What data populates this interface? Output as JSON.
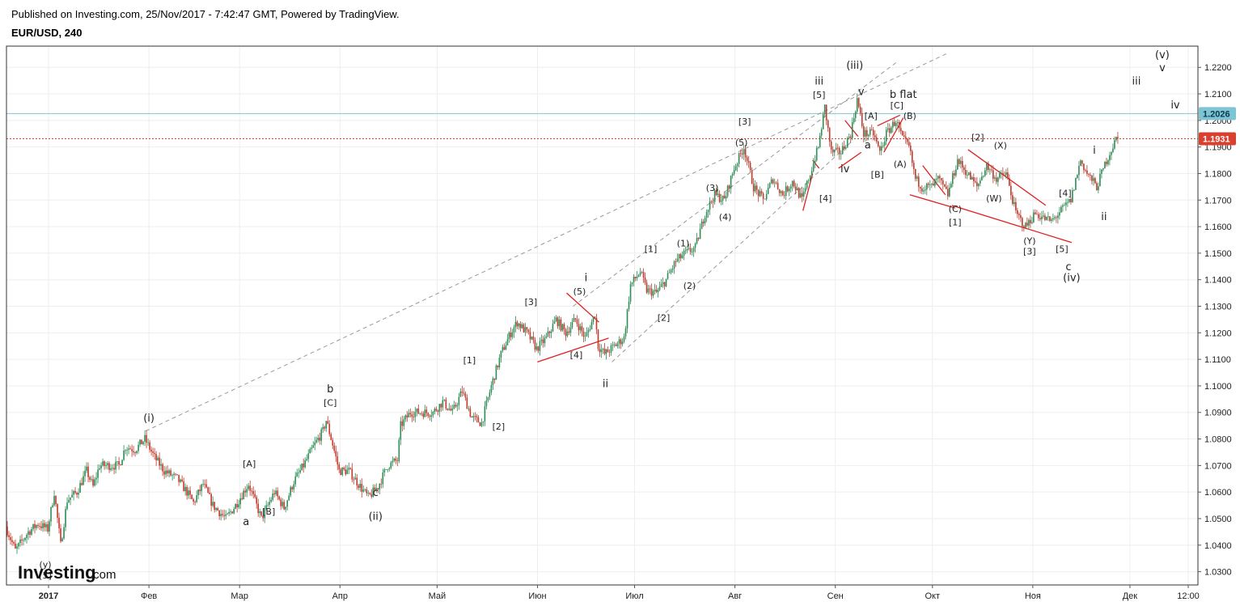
{
  "header": {
    "published": "Published on Investing.com, 25/Nov/2017 - 7:42:47 GMT, Powered by TradingView.",
    "symbol": "EUR/USD, 240"
  },
  "logo": {
    "brand": "Investing",
    "suffix": ".com"
  },
  "chart_data": {
    "type": "candlestick",
    "title": "EUR/USD, 240",
    "xlabel": "",
    "ylabel": "",
    "ylim": [
      1.025,
      1.228
    ],
    "y_ticks": [
      "1.2200",
      "1.2100",
      "1.2000",
      "1.1900",
      "1.1800",
      "1.1700",
      "1.1600",
      "1.1500",
      "1.1400",
      "1.1300",
      "1.1200",
      "1.1100",
      "1.1000",
      "1.0900",
      "1.0800",
      "1.0700",
      "1.0600",
      "1.0500",
      "1.0400",
      "1.0300"
    ],
    "x_ticks": [
      {
        "label": "2017",
        "day": 0
      },
      {
        "label": "Фев",
        "day": 31
      },
      {
        "label": "Мар",
        "day": 59
      },
      {
        "label": "Апр",
        "day": 90
      },
      {
        "label": "Май",
        "day": 120
      },
      {
        "label": "Июн",
        "day": 151
      },
      {
        "label": "Июл",
        "day": 181
      },
      {
        "label": "Авг",
        "day": 212
      },
      {
        "label": "Сен",
        "day": 243
      },
      {
        "label": "Окт",
        "day": 273
      },
      {
        "label": "Ноя",
        "day": 304
      },
      {
        "label": "Дек",
        "day": 334
      },
      {
        "label": "12:00",
        "day": 352
      }
    ],
    "xlim_days": [
      -13,
      355
    ],
    "horizontal_lines": [
      {
        "value": 1.2026,
        "label": "1.2026",
        "color": "#7fc4d4",
        "style": "solid"
      },
      {
        "value": 1.1931,
        "label": "1.1931",
        "color": "#d9412e",
        "style": "dotted"
      }
    ],
    "price_path": [
      {
        "day": -13,
        "price": 1.047
      },
      {
        "day": -10,
        "price": 1.038
      },
      {
        "day": -6,
        "price": 1.045
      },
      {
        "day": -3,
        "price": 1.048
      },
      {
        "day": 0,
        "price": 1.046
      },
      {
        "day": 2,
        "price": 1.06
      },
      {
        "day": 4,
        "price": 1.04
      },
      {
        "day": 6,
        "price": 1.057
      },
      {
        "day": 9,
        "price": 1.06
      },
      {
        "day": 12,
        "price": 1.068
      },
      {
        "day": 14,
        "price": 1.062
      },
      {
        "day": 16,
        "price": 1.07
      },
      {
        "day": 19,
        "price": 1.07
      },
      {
        "day": 22,
        "price": 1.07
      },
      {
        "day": 24,
        "price": 1.077
      },
      {
        "day": 27,
        "price": 1.076
      },
      {
        "day": 30,
        "price": 1.08
      },
      {
        "day": 33,
        "price": 1.073
      },
      {
        "day": 36,
        "price": 1.068
      },
      {
        "day": 40,
        "price": 1.065
      },
      {
        "day": 43,
        "price": 1.06
      },
      {
        "day": 45,
        "price": 1.056
      },
      {
        "day": 48,
        "price": 1.063
      },
      {
        "day": 51,
        "price": 1.055
      },
      {
        "day": 55,
        "price": 1.05
      },
      {
        "day": 58,
        "price": 1.055
      },
      {
        "day": 62,
        "price": 1.063
      },
      {
        "day": 66,
        "price": 1.05
      },
      {
        "day": 70,
        "price": 1.06
      },
      {
        "day": 73,
        "price": 1.054
      },
      {
        "day": 76,
        "price": 1.064
      },
      {
        "day": 79,
        "price": 1.07
      },
      {
        "day": 82,
        "price": 1.077
      },
      {
        "day": 85,
        "price": 1.083
      },
      {
        "day": 86,
        "price": 1.087
      },
      {
        "day": 88,
        "price": 1.078
      },
      {
        "day": 90,
        "price": 1.068
      },
      {
        "day": 93,
        "price": 1.068
      },
      {
        "day": 96,
        "price": 1.063
      },
      {
        "day": 99,
        "price": 1.058
      },
      {
        "day": 102,
        "price": 1.062
      },
      {
        "day": 105,
        "price": 1.07
      },
      {
        "day": 108,
        "price": 1.072
      },
      {
        "day": 109,
        "price": 1.085
      },
      {
        "day": 112,
        "price": 1.09
      },
      {
        "day": 116,
        "price": 1.09
      },
      {
        "day": 119,
        "price": 1.09
      },
      {
        "day": 122,
        "price": 1.094
      },
      {
        "day": 125,
        "price": 1.09
      },
      {
        "day": 128,
        "price": 1.098
      },
      {
        "day": 131,
        "price": 1.088
      },
      {
        "day": 134,
        "price": 1.086
      },
      {
        "day": 137,
        "price": 1.1
      },
      {
        "day": 140,
        "price": 1.112
      },
      {
        "day": 143,
        "price": 1.12
      },
      {
        "day": 145,
        "price": 1.124
      },
      {
        "day": 148,
        "price": 1.12
      },
      {
        "day": 151,
        "price": 1.114
      },
      {
        "day": 154,
        "price": 1.118
      },
      {
        "day": 157,
        "price": 1.125
      },
      {
        "day": 160,
        "price": 1.12
      },
      {
        "day": 163,
        "price": 1.125
      },
      {
        "day": 166,
        "price": 1.118
      },
      {
        "day": 169,
        "price": 1.127
      },
      {
        "day": 170,
        "price": 1.115
      },
      {
        "day": 172,
        "price": 1.112
      },
      {
        "day": 175,
        "price": 1.115
      },
      {
        "day": 178,
        "price": 1.118
      },
      {
        "day": 180,
        "price": 1.138
      },
      {
        "day": 183,
        "price": 1.143
      },
      {
        "day": 185,
        "price": 1.136
      },
      {
        "day": 188,
        "price": 1.135
      },
      {
        "day": 191,
        "price": 1.14
      },
      {
        "day": 194,
        "price": 1.147
      },
      {
        "day": 197,
        "price": 1.15
      },
      {
        "day": 200,
        "price": 1.152
      },
      {
        "day": 203,
        "price": 1.165
      },
      {
        "day": 206,
        "price": 1.172
      },
      {
        "day": 209,
        "price": 1.17
      },
      {
        "day": 212,
        "price": 1.182
      },
      {
        "day": 215,
        "price": 1.19
      },
      {
        "day": 218,
        "price": 1.175
      },
      {
        "day": 221,
        "price": 1.17
      },
      {
        "day": 224,
        "price": 1.178
      },
      {
        "day": 227,
        "price": 1.172
      },
      {
        "day": 230,
        "price": 1.177
      },
      {
        "day": 233,
        "price": 1.17
      },
      {
        "day": 235,
        "price": 1.178
      },
      {
        "day": 238,
        "price": 1.19
      },
      {
        "day": 240,
        "price": 1.205
      },
      {
        "day": 242,
        "price": 1.188
      },
      {
        "day": 245,
        "price": 1.188
      },
      {
        "day": 248,
        "price": 1.195
      },
      {
        "day": 250,
        "price": 1.208
      },
      {
        "day": 252,
        "price": 1.195
      },
      {
        "day": 255,
        "price": 1.195
      },
      {
        "day": 257,
        "price": 1.188
      },
      {
        "day": 259,
        "price": 1.195
      },
      {
        "day": 262,
        "price": 1.2
      },
      {
        "day": 264,
        "price": 1.193
      },
      {
        "day": 266,
        "price": 1.19
      },
      {
        "day": 268,
        "price": 1.178
      },
      {
        "day": 270,
        "price": 1.175
      },
      {
        "day": 273,
        "price": 1.175
      },
      {
        "day": 275,
        "price": 1.178
      },
      {
        "day": 278,
        "price": 1.172
      },
      {
        "day": 281,
        "price": 1.185
      },
      {
        "day": 284,
        "price": 1.18
      },
      {
        "day": 287,
        "price": 1.175
      },
      {
        "day": 290,
        "price": 1.183
      },
      {
        "day": 293,
        "price": 1.178
      },
      {
        "day": 296,
        "price": 1.18
      },
      {
        "day": 299,
        "price": 1.165
      },
      {
        "day": 302,
        "price": 1.16
      },
      {
        "day": 305,
        "price": 1.165
      },
      {
        "day": 308,
        "price": 1.163
      },
      {
        "day": 310,
        "price": 1.162
      },
      {
        "day": 313,
        "price": 1.166
      },
      {
        "day": 316,
        "price": 1.17
      },
      {
        "day": 319,
        "price": 1.185
      },
      {
        "day": 321,
        "price": 1.18
      },
      {
        "day": 324,
        "price": 1.175
      },
      {
        "day": 327,
        "price": 1.185
      },
      {
        "day": 330,
        "price": 1.193
      }
    ],
    "trend_lines": [
      {
        "color": "#999999",
        "dash": true,
        "points": [
          [
            30,
            1.083
          ],
          [
            278,
            1.2255
          ]
        ]
      },
      {
        "color": "#999999",
        "dash": true,
        "points": [
          [
            162,
            1.13
          ],
          [
            262,
            1.222
          ]
        ]
      },
      {
        "color": "#999999",
        "dash": true,
        "points": [
          [
            174,
            1.109
          ],
          [
            248,
            1.192
          ]
        ]
      },
      {
        "color": "#e02020",
        "dash": false,
        "points": [
          [
            151,
            1.109
          ],
          [
            173,
            1.118
          ]
        ]
      },
      {
        "color": "#e02020",
        "dash": false,
        "points": [
          [
            160,
            1.135
          ],
          [
            170,
            1.124
          ]
        ]
      },
      {
        "color": "#e02020",
        "dash": false,
        "points": [
          [
            233,
            1.166
          ],
          [
            236,
            1.18
          ]
        ]
      },
      {
        "color": "#e02020",
        "dash": false,
        "points": [
          [
            236,
            1.185
          ],
          [
            238,
            1.182
          ]
        ]
      },
      {
        "color": "#e02020",
        "dash": false,
        "points": [
          [
            244,
            1.182
          ],
          [
            251,
            1.188
          ]
        ]
      },
      {
        "color": "#e02020",
        "dash": false,
        "points": [
          [
            246,
            1.2
          ],
          [
            250,
            1.194
          ]
        ]
      },
      {
        "color": "#e02020",
        "dash": false,
        "points": [
          [
            256,
            1.198
          ],
          [
            263,
            1.202
          ]
        ]
      },
      {
        "color": "#e02020",
        "dash": false,
        "points": [
          [
            258,
            1.188
          ],
          [
            264,
            1.201
          ]
        ]
      },
      {
        "color": "#e02020",
        "dash": false,
        "points": [
          [
            266,
            1.172
          ],
          [
            280,
            1.167
          ]
        ]
      },
      {
        "color": "#e02020",
        "dash": false,
        "points": [
          [
            270,
            1.183
          ],
          [
            277,
            1.172
          ]
        ]
      },
      {
        "color": "#e02020",
        "dash": false,
        "points": [
          [
            284,
            1.189
          ],
          [
            308,
            1.168
          ]
        ]
      },
      {
        "color": "#e02020",
        "dash": false,
        "points": [
          [
            279,
            1.168
          ],
          [
            316,
            1.154
          ]
        ]
      }
    ],
    "wave_labels": [
      {
        "text": "(i)",
        "day": 31,
        "price": 1.0865,
        "big": true
      },
      {
        "text": "(ii)",
        "day": 101,
        "price": 1.0495,
        "big": true
      },
      {
        "text": "(iii)",
        "day": 249,
        "price": 1.2195,
        "big": true
      },
      {
        "text": "(iv)",
        "day": 316,
        "price": 1.1395,
        "big": true
      },
      {
        "text": "(v)",
        "day": 344,
        "price": 1.2235,
        "big": true
      },
      {
        "text": "(y)",
        "day": -1,
        "price": 1.0315,
        "big": false
      },
      {
        "text": "[5]",
        "day": -1,
        "price": 1.0275,
        "big": false
      },
      {
        "text": "a",
        "day": 61,
        "price": 1.0475,
        "big": true
      },
      {
        "text": "[A]",
        "day": 62,
        "price": 1.0695,
        "big": false
      },
      {
        "text": "[B]",
        "day": 68,
        "price": 1.0515,
        "big": false
      },
      {
        "text": "b",
        "day": 87,
        "price": 1.0975,
        "big": true
      },
      {
        "text": "[C]",
        "day": 87,
        "price": 1.0925,
        "big": false
      },
      {
        "text": "c",
        "day": 101,
        "price": 1.0585,
        "big": true
      },
      {
        "text": "[1]",
        "day": 130,
        "price": 1.1085,
        "big": false
      },
      {
        "text": "[2]",
        "day": 139,
        "price": 1.0835,
        "big": false
      },
      {
        "text": "[3]",
        "day": 149,
        "price": 1.1305,
        "big": false
      },
      {
        "text": "[4]",
        "day": 163,
        "price": 1.1105,
        "big": false
      },
      {
        "text": "(5)",
        "day": 164,
        "price": 1.1345,
        "big": false
      },
      {
        "text": "i",
        "day": 166,
        "price": 1.1395,
        "big": true
      },
      {
        "text": "ii",
        "day": 172,
        "price": 1.0995,
        "big": true
      },
      {
        "text": "[1]",
        "day": 186,
        "price": 1.1505,
        "big": false
      },
      {
        "text": "[2]",
        "day": 190,
        "price": 1.1245,
        "big": false
      },
      {
        "text": "(1)",
        "day": 196,
        "price": 1.1525,
        "big": false
      },
      {
        "text": "(2)",
        "day": 198,
        "price": 1.1365,
        "big": false
      },
      {
        "text": "(3)",
        "day": 205,
        "price": 1.1735,
        "big": false
      },
      {
        "text": "(4)",
        "day": 209,
        "price": 1.1625,
        "big": false
      },
      {
        "text": "(5)",
        "day": 214,
        "price": 1.1905,
        "big": false
      },
      {
        "text": "[3]",
        "day": 215,
        "price": 1.1985,
        "big": false
      },
      {
        "text": "[4]",
        "day": 240,
        "price": 1.1695,
        "big": false
      },
      {
        "text": "iii",
        "day": 238,
        "price": 1.2135,
        "big": true
      },
      {
        "text": "[5]",
        "day": 238,
        "price": 1.2085,
        "big": false
      },
      {
        "text": "iv",
        "day": 246,
        "price": 1.1805,
        "big": true
      },
      {
        "text": "v",
        "day": 251,
        "price": 1.2095,
        "big": true
      },
      {
        "text": "[A]",
        "day": 254,
        "price": 1.2005,
        "big": false
      },
      {
        "text": "a",
        "day": 253,
        "price": 1.1895,
        "big": true
      },
      {
        "text": "[B]",
        "day": 256,
        "price": 1.1785,
        "big": false
      },
      {
        "text": "b flat",
        "day": 264,
        "price": 1.2085,
        "big": true
      },
      {
        "text": "[C]",
        "day": 262,
        "price": 1.2045,
        "big": false
      },
      {
        "text": "(B)",
        "day": 266,
        "price": 1.2005,
        "big": false
      },
      {
        "text": "(A)",
        "day": 263,
        "price": 1.1825,
        "big": false
      },
      {
        "text": "(C)",
        "day": 280,
        "price": 1.1655,
        "big": false
      },
      {
        "text": "[1]",
        "day": 280,
        "price": 1.1605,
        "big": false
      },
      {
        "text": "[2]",
        "day": 287,
        "price": 1.1925,
        "big": false
      },
      {
        "text": "(X)",
        "day": 294,
        "price": 1.1895,
        "big": false
      },
      {
        "text": "(W)",
        "day": 292,
        "price": 1.1695,
        "big": false
      },
      {
        "text": "[4]",
        "day": 314,
        "price": 1.1715,
        "big": false
      },
      {
        "text": "(Y)",
        "day": 303,
        "price": 1.1535,
        "big": false
      },
      {
        "text": "[3]",
        "day": 303,
        "price": 1.1495,
        "big": false
      },
      {
        "text": "[5]",
        "day": 313,
        "price": 1.1505,
        "big": false
      },
      {
        "text": "c",
        "day": 315,
        "price": 1.1435,
        "big": true
      },
      {
        "text": "i",
        "day": 323,
        "price": 1.1875,
        "big": true
      },
      {
        "text": "ii",
        "day": 326,
        "price": 1.1625,
        "big": true
      },
      {
        "text": "iii",
        "day": 336,
        "price": 1.2135,
        "big": true
      },
      {
        "text": "iv",
        "day": 348,
        "price": 1.2045,
        "big": true
      },
      {
        "text": "v",
        "day": 344,
        "price": 1.2185,
        "big": true
      }
    ],
    "grid": true,
    "colors": {
      "up": "#2e8b57",
      "down": "#c0392b",
      "grid": "#eeeeee",
      "frame": "#333333"
    }
  }
}
